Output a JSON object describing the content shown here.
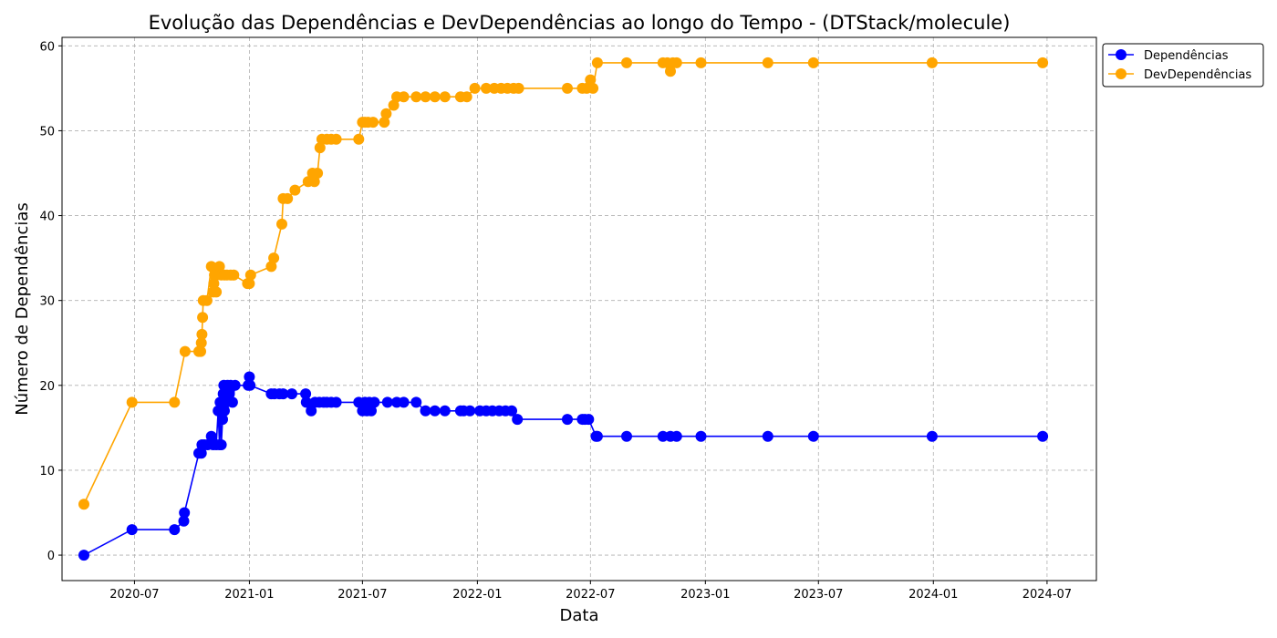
{
  "chart_data": {
    "type": "line",
    "title": "Evolução das Dependências e DevDependências ao longo do Tempo - (DTStack/molecule)",
    "xlabel": "Data",
    "ylabel": "Número de Dependências",
    "x_ticks": [
      "2020-07",
      "2021-01",
      "2021-07",
      "2022-01",
      "2022-07",
      "2023-01",
      "2023-07",
      "2024-01",
      "2024-07"
    ],
    "y_ticks": [
      0,
      10,
      20,
      30,
      40,
      50,
      60
    ],
    "xlim": [
      "2020-03-07",
      "2024-09-18"
    ],
    "ylim": [
      -3,
      61
    ],
    "grid": true,
    "legend_position": "top-right (outside)",
    "series": [
      {
        "name": "Dependências",
        "color": "#0000ff",
        "points": [
          [
            "2020-04-11",
            0
          ],
          [
            "2020-06-27",
            3
          ],
          [
            "2020-09-03",
            3
          ],
          [
            "2020-09-18",
            4
          ],
          [
            "2020-09-19",
            5
          ],
          [
            "2020-10-12",
            12
          ],
          [
            "2020-10-16",
            12
          ],
          [
            "2020-10-17",
            13
          ],
          [
            "2020-10-21",
            13
          ],
          [
            "2020-10-26",
            13
          ],
          [
            "2020-11-01",
            14
          ],
          [
            "2020-11-04",
            13
          ],
          [
            "2020-11-09",
            13
          ],
          [
            "2020-11-12",
            17
          ],
          [
            "2020-11-14",
            13
          ],
          [
            "2020-11-15",
            18
          ],
          [
            "2020-11-17",
            13
          ],
          [
            "2020-11-19",
            16
          ],
          [
            "2020-11-20",
            19
          ],
          [
            "2020-11-21",
            20
          ],
          [
            "2020-11-22",
            17
          ],
          [
            "2020-11-25",
            18
          ],
          [
            "2020-11-27",
            20
          ],
          [
            "2020-11-30",
            19
          ],
          [
            "2020-12-02",
            20
          ],
          [
            "2020-12-05",
            18
          ],
          [
            "2020-12-09",
            20
          ],
          [
            "2020-12-30",
            20
          ],
          [
            "2021-01-01",
            21
          ],
          [
            "2021-01-02",
            20
          ],
          [
            "2021-02-05",
            19
          ],
          [
            "2021-02-10",
            19
          ],
          [
            "2021-02-18",
            19
          ],
          [
            "2021-02-24",
            19
          ],
          [
            "2021-03-10",
            19
          ],
          [
            "2021-04-01",
            19
          ],
          [
            "2021-04-02",
            18
          ],
          [
            "2021-04-10",
            17
          ],
          [
            "2021-04-16",
            18
          ],
          [
            "2021-04-23",
            18
          ],
          [
            "2021-04-30",
            18
          ],
          [
            "2021-05-05",
            18
          ],
          [
            "2021-05-12",
            18
          ],
          [
            "2021-05-20",
            18
          ],
          [
            "2021-06-25",
            18
          ],
          [
            "2021-07-01",
            17
          ],
          [
            "2021-07-05",
            18
          ],
          [
            "2021-07-08",
            17
          ],
          [
            "2021-07-12",
            18
          ],
          [
            "2021-07-15",
            17
          ],
          [
            "2021-07-20",
            18
          ],
          [
            "2021-08-10",
            18
          ],
          [
            "2021-08-25",
            18
          ],
          [
            "2021-09-05",
            18
          ],
          [
            "2021-09-25",
            18
          ],
          [
            "2021-10-10",
            17
          ],
          [
            "2021-10-25",
            17
          ],
          [
            "2021-11-10",
            17
          ],
          [
            "2021-12-05",
            17
          ],
          [
            "2021-12-10",
            17
          ],
          [
            "2021-12-20",
            17
          ],
          [
            "2022-01-05",
            17
          ],
          [
            "2022-01-15",
            17
          ],
          [
            "2022-01-25",
            17
          ],
          [
            "2022-02-05",
            17
          ],
          [
            "2022-02-15",
            17
          ],
          [
            "2022-02-25",
            17
          ],
          [
            "2022-03-06",
            16
          ],
          [
            "2022-05-25",
            16
          ],
          [
            "2022-06-18",
            16
          ],
          [
            "2022-06-22",
            16
          ],
          [
            "2022-06-28",
            16
          ],
          [
            "2022-07-10",
            14
          ],
          [
            "2022-07-12",
            14
          ],
          [
            "2022-08-28",
            14
          ],
          [
            "2022-10-25",
            14
          ],
          [
            "2022-11-06",
            14
          ],
          [
            "2022-11-16",
            14
          ],
          [
            "2022-12-25",
            14
          ],
          [
            "2023-04-11",
            14
          ],
          [
            "2023-06-23",
            14
          ],
          [
            "2023-12-30",
            14
          ],
          [
            "2024-06-24",
            14
          ]
        ]
      },
      {
        "name": "DevDependências",
        "color": "#ffa500",
        "points": [
          [
            "2020-04-11",
            6
          ],
          [
            "2020-06-27",
            18
          ],
          [
            "2020-09-03",
            18
          ],
          [
            "2020-09-20",
            24
          ],
          [
            "2020-10-12",
            24
          ],
          [
            "2020-10-15",
            24
          ],
          [
            "2020-10-16",
            25
          ],
          [
            "2020-10-17",
            26
          ],
          [
            "2020-10-18",
            28
          ],
          [
            "2020-10-19",
            30
          ],
          [
            "2020-10-25",
            30
          ],
          [
            "2020-11-01",
            34
          ],
          [
            "2020-11-04",
            31
          ],
          [
            "2020-11-05",
            32
          ],
          [
            "2020-11-06",
            33
          ],
          [
            "2020-11-09",
            31
          ],
          [
            "2020-11-14",
            34
          ],
          [
            "2020-11-17",
            33
          ],
          [
            "2020-11-22",
            33
          ],
          [
            "2020-11-26",
            33
          ],
          [
            "2020-12-02",
            33
          ],
          [
            "2020-12-07",
            33
          ],
          [
            "2020-12-29",
            32
          ],
          [
            "2021-01-01",
            32
          ],
          [
            "2021-01-03",
            33
          ],
          [
            "2021-02-05",
            34
          ],
          [
            "2021-02-09",
            35
          ],
          [
            "2021-02-22",
            39
          ],
          [
            "2021-02-24",
            42
          ],
          [
            "2021-03-03",
            42
          ],
          [
            "2021-03-15",
            43
          ],
          [
            "2021-04-05",
            44
          ],
          [
            "2021-04-12",
            45
          ],
          [
            "2021-04-15",
            44
          ],
          [
            "2021-04-20",
            45
          ],
          [
            "2021-04-24",
            48
          ],
          [
            "2021-04-27",
            49
          ],
          [
            "2021-05-05",
            49
          ],
          [
            "2021-05-12",
            49
          ],
          [
            "2021-05-20",
            49
          ],
          [
            "2021-06-25",
            49
          ],
          [
            "2021-07-01",
            51
          ],
          [
            "2021-07-05",
            51
          ],
          [
            "2021-07-10",
            51
          ],
          [
            "2021-07-18",
            51
          ],
          [
            "2021-08-05",
            51
          ],
          [
            "2021-08-08",
            52
          ],
          [
            "2021-08-20",
            53
          ],
          [
            "2021-08-25",
            54
          ],
          [
            "2021-09-05",
            54
          ],
          [
            "2021-09-25",
            54
          ],
          [
            "2021-10-10",
            54
          ],
          [
            "2021-10-25",
            54
          ],
          [
            "2021-11-10",
            54
          ],
          [
            "2021-12-05",
            54
          ],
          [
            "2021-12-15",
            54
          ],
          [
            "2021-12-28",
            55
          ],
          [
            "2022-01-15",
            55
          ],
          [
            "2022-01-28",
            55
          ],
          [
            "2022-02-08",
            55
          ],
          [
            "2022-02-18",
            55
          ],
          [
            "2022-02-28",
            55
          ],
          [
            "2022-03-08",
            55
          ],
          [
            "2022-05-25",
            55
          ],
          [
            "2022-06-18",
            55
          ],
          [
            "2022-06-25",
            55
          ],
          [
            "2022-07-01",
            56
          ],
          [
            "2022-07-05",
            55
          ],
          [
            "2022-07-12",
            58
          ],
          [
            "2022-08-28",
            58
          ],
          [
            "2022-10-25",
            58
          ],
          [
            "2022-11-01",
            58
          ],
          [
            "2022-11-06",
            57
          ],
          [
            "2022-11-10",
            58
          ],
          [
            "2022-11-16",
            58
          ],
          [
            "2022-12-25",
            58
          ],
          [
            "2023-04-11",
            58
          ],
          [
            "2023-06-23",
            58
          ],
          [
            "2023-12-30",
            58
          ],
          [
            "2024-06-24",
            58
          ]
        ]
      }
    ]
  }
}
